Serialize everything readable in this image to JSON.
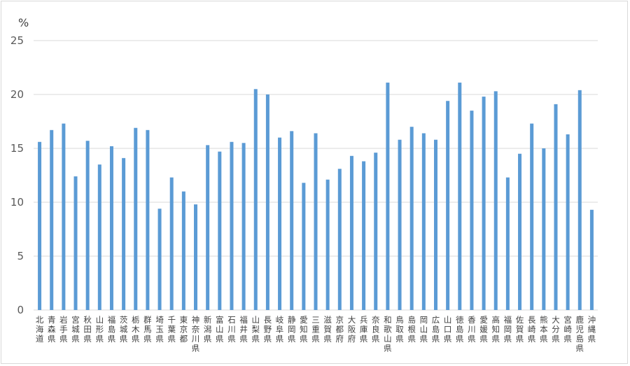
{
  "chart_data": {
    "type": "bar",
    "ylabel": "%",
    "ylim": [
      0,
      25
    ],
    "yticks": [
      0,
      5,
      10,
      15,
      20,
      25
    ],
    "grid": true,
    "legend": "none",
    "bar_color": "#5b9bd5",
    "grid_color": "#d9d9d9",
    "categories": [
      "北海道",
      "青森県",
      "岩手県",
      "宮城県",
      "秋田県",
      "山形県",
      "福島県",
      "茨城県",
      "栃木県",
      "群馬県",
      "埼玉県",
      "千葉県",
      "東京都",
      "神奈川県",
      "新潟県",
      "富山県",
      "石川県",
      "福井県",
      "山梨県",
      "長野県",
      "岐阜県",
      "静岡県",
      "愛知県",
      "三重県",
      "滋賀県",
      "京都府",
      "大阪府",
      "兵庫県",
      "奈良県",
      "和歌山県",
      "鳥取県",
      "島根県",
      "岡山県",
      "広島県",
      "山口県",
      "徳島県",
      "香川県",
      "愛媛県",
      "高知県",
      "福岡県",
      "佐賀県",
      "長崎県",
      "熊本県",
      "大分県",
      "宮崎県",
      "鹿児島県",
      "沖縄県"
    ],
    "values": [
      15.6,
      16.7,
      17.3,
      12.4,
      15.7,
      13.5,
      15.2,
      14.1,
      16.9,
      16.7,
      9.4,
      12.3,
      11.0,
      9.8,
      15.3,
      14.7,
      15.6,
      15.5,
      20.5,
      20.0,
      16.0,
      16.6,
      11.8,
      16.4,
      12.1,
      13.1,
      14.3,
      13.8,
      14.6,
      21.1,
      15.8,
      17.0,
      16.4,
      15.8,
      19.4,
      21.1,
      18.5,
      19.8,
      20.3,
      12.3,
      14.5,
      17.3,
      15.0,
      19.1,
      16.3,
      20.4,
      9.3
    ]
  }
}
